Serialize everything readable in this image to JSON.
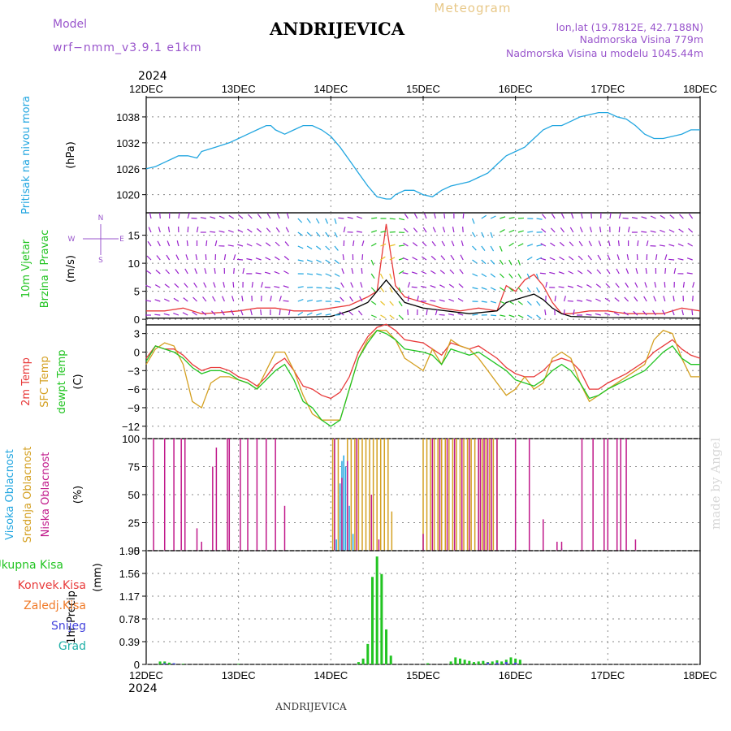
{
  "header": {
    "model_label": "Model",
    "model_value": "wrf−nmm_v3.9.1  e1km",
    "station": "ANDRIJEVICA",
    "product": "Meteogram",
    "coords": "lon,lat (19.7812E, 42.7188N)",
    "elevation": "Nadmorska Visina 779m",
    "model_elevation": "Nadmorska Visina u modelu 1045.44m",
    "year_top": "2024",
    "year_bottom": "2024",
    "footer_station": "ANDRIJEVICA",
    "credit": "made by Angel"
  },
  "colors": {
    "pressure": "#22a6e0",
    "rain_total": "#22c422",
    "convective": "#e83a3a",
    "frozen": "#f07a28",
    "snow": "#4444dd",
    "hail": "#22b0a8",
    "high_cloud": "#22a6e0",
    "mid_cloud": "#d4a022",
    "low_cloud": "#c0188a",
    "temp2m": "#e83a3a",
    "sfc_temp": "#d4a022",
    "dewpoint": "#22c422",
    "wind_label": "#22c422",
    "pressure_label": "#22a6e0",
    "model_label": "#9955cc"
  },
  "x_ticks": [
    "12DEC",
    "13DEC",
    "14DEC",
    "15DEC",
    "16DEC",
    "17DEC",
    "18DEC"
  ],
  "chart_data": [
    {
      "type": "line",
      "panel": "pressure",
      "ylabel_lines": [
        "Pritisak na nivou mora"
      ],
      "unit": "(hPa)",
      "ylim": [
        1015.8,
        1042.5
      ],
      "yticks": [
        1020,
        1026,
        1032,
        1038
      ],
      "series": [
        {
          "x": [
            0,
            0.1,
            0.2,
            0.3,
            0.35,
            0.45,
            0.55,
            0.6,
            0.75,
            0.9,
            1.0,
            1.1,
            1.2,
            1.3,
            1.35,
            1.4,
            1.5,
            1.6,
            1.7,
            1.8,
            1.9,
            2.0,
            2.1,
            2.2,
            2.3,
            2.4,
            2.5,
            2.6,
            2.65,
            2.7,
            2.8,
            2.9,
            3.0,
            3.1,
            3.2,
            3.3,
            3.4,
            3.5,
            3.6,
            3.7,
            3.8,
            3.9,
            4.0,
            4.1,
            4.2,
            4.3,
            4.4,
            4.5,
            4.6,
            4.7,
            4.8,
            4.9,
            5.0,
            5.1,
            5.2,
            5.3,
            5.4,
            5.5,
            5.6,
            5.7,
            5.8,
            5.9,
            6.0
          ],
          "y": [
            1026,
            1026.5,
            1027.5,
            1028.5,
            1029,
            1029,
            1028.5,
            1030,
            1031,
            1032,
            1033,
            1034,
            1035,
            1036,
            1036,
            1035,
            1034,
            1035,
            1036,
            1036,
            1035,
            1033.5,
            1031,
            1028,
            1025,
            1022,
            1019.5,
            1019,
            1019,
            1020,
            1021,
            1021,
            1020,
            1019.5,
            1021,
            1022,
            1022.5,
            1023,
            1024,
            1025,
            1027,
            1029,
            1030,
            1031,
            1033,
            1035,
            1036,
            1036,
            1037,
            1038,
            1038.5,
            1039,
            1039,
            1038,
            1037.5,
            1036,
            1034,
            1033,
            1033,
            1033.5,
            1034,
            1035,
            1035
          ]
        }
      ]
    },
    {
      "type": "line",
      "panel": "wind",
      "ylabel_lines": [
        "10m Vjetar",
        "Brzina i Pravac"
      ],
      "unit": "(m/s)",
      "compass": [
        "N",
        "E",
        "S",
        "W"
      ],
      "ylim": [
        -1,
        19
      ],
      "yticks": [
        0,
        5,
        10,
        15
      ],
      "series": [
        {
          "color": "#e83a3a",
          "x": [
            0,
            0.2,
            0.4,
            0.6,
            0.8,
            1.0,
            1.2,
            1.4,
            1.6,
            1.8,
            2.0,
            2.2,
            2.4,
            2.5,
            2.6,
            2.7,
            2.8,
            3.0,
            3.2,
            3.4,
            3.6,
            3.8,
            3.9,
            4.0,
            4.1,
            4.2,
            4.3,
            4.4,
            4.5,
            4.6,
            4.8,
            5.0,
            5.2,
            5.4,
            5.6,
            5.8,
            6.0
          ],
          "y": [
            1.5,
            1.5,
            2,
            1,
            1.2,
            1.5,
            2,
            2,
            1.5,
            1.5,
            2,
            2.5,
            4,
            5,
            17,
            6,
            4,
            3,
            2,
            1.5,
            2,
            1.5,
            6,
            5,
            7,
            8,
            6,
            3,
            1,
            1,
            1.5,
            1.5,
            1,
            1,
            1,
            2,
            1.5
          ]
        },
        {
          "color": "#000000",
          "x": [
            0,
            0.5,
            1.0,
            1.5,
            2.0,
            2.2,
            2.4,
            2.5,
            2.6,
            2.7,
            2.8,
            3.0,
            3.5,
            3.8,
            3.9,
            4.0,
            4.1,
            4.2,
            4.3,
            4.4,
            4.5,
            4.6,
            5.0,
            6.0
          ],
          "y": [
            0.2,
            0.2,
            0.3,
            0.3,
            0.5,
            1.5,
            3,
            5,
            7,
            5,
            3,
            2,
            1,
            1.5,
            3,
            3.5,
            4,
            4.5,
            3.5,
            2,
            1,
            0.5,
            0.3,
            0.2
          ]
        }
      ]
    },
    {
      "type": "line",
      "panel": "temperature",
      "ylabel_lines": [
        "2m Temp",
        "SFC Temp",
        "dewpt Temp"
      ],
      "unit": "(C)",
      "ylim": [
        -14,
        4.4
      ],
      "yticks": [
        -12,
        -9,
        -6,
        -3,
        0,
        3
      ],
      "series": [
        {
          "name": "2m Temp",
          "color": "#e83a3a",
          "x": [
            0,
            0.1,
            0.2,
            0.3,
            0.4,
            0.5,
            0.6,
            0.7,
            0.8,
            0.9,
            1.0,
            1.1,
            1.2,
            1.3,
            1.4,
            1.5,
            1.6,
            1.7,
            1.8,
            1.9,
            2.0,
            2.1,
            2.2,
            2.3,
            2.4,
            2.5,
            2.6,
            2.7,
            2.8,
            3.0,
            3.1,
            3.2,
            3.3,
            3.4,
            3.5,
            3.6,
            3.7,
            3.8,
            3.9,
            4.0,
            4.1,
            4.2,
            4.3,
            4.4,
            4.5,
            4.6,
            4.7,
            4.8,
            4.9,
            5.0,
            5.2,
            5.4,
            5.5,
            5.6,
            5.7,
            5.8,
            5.9,
            6.0
          ],
          "y": [
            -1,
            1,
            0.5,
            0.5,
            -0.5,
            -2,
            -3,
            -2.5,
            -2.5,
            -3,
            -4,
            -4.5,
            -5.5,
            -4,
            -2,
            -1,
            -3,
            -5.5,
            -6,
            -7,
            -7.5,
            -6.5,
            -4,
            0,
            2.5,
            4,
            4.5,
            3.5,
            2,
            1.5,
            0.5,
            -0.5,
            1.5,
            1,
            0.5,
            1,
            0,
            -1,
            -2.5,
            -3.5,
            -4,
            -4,
            -3,
            -1.5,
            -1,
            -1.5,
            -3,
            -6,
            -6,
            -5,
            -3.5,
            -1.5,
            0,
            1,
            2,
            0.5,
            -0.5,
            -1
          ]
        },
        {
          "name": "SFC Temp",
          "color": "#d4a022",
          "x": [
            0,
            0.1,
            0.2,
            0.3,
            0.4,
            0.5,
            0.6,
            0.7,
            0.8,
            0.9,
            1.0,
            1.1,
            1.2,
            1.3,
            1.4,
            1.5,
            1.6,
            1.7,
            1.8,
            1.9,
            2.0,
            2.1,
            2.2,
            2.3,
            2.4,
            2.5,
            2.6,
            2.7,
            2.8,
            3.0,
            3.1,
            3.2,
            3.3,
            3.4,
            3.5,
            3.6,
            3.7,
            3.8,
            3.9,
            4.0,
            4.1,
            4.2,
            4.3,
            4.4,
            4.5,
            4.6,
            4.7,
            4.8,
            4.9,
            5.0,
            5.2,
            5.4,
            5.5,
            5.6,
            5.7,
            5.8,
            5.9,
            6.0
          ],
          "y": [
            -2,
            0.5,
            1.5,
            1,
            -2,
            -8,
            -9,
            -5,
            -4,
            -4,
            -4.5,
            -5,
            -6,
            -3,
            0,
            0,
            -3,
            -7,
            -10,
            -11,
            -11,
            -11,
            -6,
            -1,
            2,
            3.5,
            3.5,
            2,
            -1,
            -3,
            0.5,
            -2,
            2,
            1,
            0.5,
            -1,
            -3,
            -5,
            -7,
            -6,
            -4,
            -6,
            -5,
            -1,
            0,
            -1,
            -5,
            -8,
            -7,
            -6,
            -4,
            -2,
            2,
            3.5,
            3,
            -1,
            -4,
            -4
          ]
        },
        {
          "name": "dewpt Temp",
          "color": "#22c422",
          "x": [
            0,
            0.1,
            0.2,
            0.3,
            0.4,
            0.5,
            0.6,
            0.7,
            0.8,
            0.9,
            1.0,
            1.1,
            1.2,
            1.3,
            1.4,
            1.5,
            1.6,
            1.7,
            1.8,
            1.9,
            2.0,
            2.1,
            2.2,
            2.3,
            2.4,
            2.5,
            2.6,
            2.7,
            2.8,
            3.0,
            3.1,
            3.2,
            3.3,
            3.4,
            3.5,
            3.6,
            3.7,
            3.8,
            3.9,
            4.0,
            4.1,
            4.2,
            4.3,
            4.4,
            4.5,
            4.6,
            4.7,
            4.8,
            4.9,
            5.0,
            5.2,
            5.4,
            5.5,
            5.6,
            5.7,
            5.8,
            5.9,
            6.0
          ],
          "y": [
            -1.5,
            1,
            0.5,
            0,
            -1,
            -2.5,
            -3.5,
            -3,
            -3,
            -3.5,
            -4.5,
            -5,
            -6,
            -4.5,
            -3,
            -2,
            -4.5,
            -8,
            -9,
            -11,
            -12,
            -11,
            -6,
            -1,
            1.5,
            3.5,
            3,
            2,
            0.5,
            0,
            -0.5,
            -2,
            0.5,
            0,
            -0.5,
            0,
            -1,
            -2,
            -3,
            -4.5,
            -5,
            -5.5,
            -4.5,
            -3,
            -2,
            -3,
            -5,
            -7.5,
            -7,
            -6,
            -4.5,
            -3,
            -1.5,
            0,
            1,
            -1,
            -2,
            -2
          ]
        }
      ]
    },
    {
      "type": "bar",
      "panel": "clouds",
      "ylabel_lines": [
        "Visoka Oblacnost",
        "Srednja Oblacnost",
        "Niska Oblacnost"
      ],
      "unit": "(%)",
      "ylim": [
        0,
        100
      ],
      "yticks": [
        0,
        25,
        50,
        75,
        100
      ],
      "series": [
        {
          "name": "Visoka Oblacnost",
          "color": "#22a6e0",
          "x": [
            2.06,
            2.1,
            2.12,
            2.14,
            2.16,
            2.2,
            2.24,
            3.0,
            3.5,
            4.0,
            4.5
          ],
          "values": [
            10,
            60,
            80,
            85,
            75,
            40,
            15,
            2,
            2,
            2,
            2
          ]
        },
        {
          "name": "Srednja Oblacnost",
          "color": "#d4a022",
          "x": [
            2.02,
            2.04,
            2.08,
            2.18,
            2.22,
            2.26,
            2.3,
            2.34,
            2.38,
            2.42,
            2.46,
            2.5,
            2.54,
            2.58,
            2.62,
            2.66,
            3.0,
            3.04,
            3.08,
            3.12,
            3.16,
            3.2,
            3.24,
            3.28,
            3.32,
            3.36,
            3.4,
            3.44,
            3.48,
            3.52,
            3.56,
            3.6,
            3.64,
            3.68,
            3.72,
            3.76,
            3.8
          ],
          "values": [
            100,
            100,
            100,
            100,
            100,
            100,
            100,
            100,
            100,
            100,
            100,
            100,
            100,
            100,
            100,
            35,
            100,
            100,
            100,
            100,
            100,
            100,
            100,
            100,
            100,
            100,
            100,
            100,
            100,
            100,
            100,
            100,
            100,
            100,
            100,
            100,
            100
          ]
        },
        {
          "name": "Niska Oblacnost",
          "color": "#c0188a",
          "x": [
            0.08,
            0.2,
            0.3,
            0.38,
            0.42,
            0.55,
            0.6,
            0.72,
            0.76,
            0.88,
            0.9,
            1.02,
            1.1,
            1.2,
            1.3,
            1.4,
            1.5,
            2.04,
            2.12,
            2.18,
            2.28,
            2.44,
            2.52,
            3.0,
            3.1,
            3.18,
            3.26,
            3.34,
            3.42,
            3.5,
            3.6,
            3.62,
            3.66,
            3.7,
            3.74,
            3.8,
            4.0,
            4.15,
            4.3,
            4.45,
            4.5,
            4.72,
            4.84,
            4.96,
            5.0,
            5.1,
            5.14,
            5.2,
            5.3
          ],
          "values": [
            100,
            100,
            100,
            100,
            100,
            20,
            8,
            75,
            92,
            100,
            100,
            100,
            100,
            100,
            100,
            100,
            40,
            100,
            65,
            80,
            100,
            50,
            10,
            15,
            100,
            100,
            100,
            100,
            100,
            100,
            100,
            100,
            100,
            100,
            100,
            100,
            100,
            100,
            28,
            8,
            8,
            100,
            100,
            100,
            100,
            100,
            100,
            100,
            10
          ]
        }
      ]
    },
    {
      "type": "bar",
      "panel": "precipitation",
      "ylabel_lines": [
        "1hr Precip"
      ],
      "unit": "(mm)",
      "legend": [
        "Ukupna Kisa",
        "Konvek.Kisa",
        "Zaledj.Kisa",
        "Snijeg",
        "Grad"
      ],
      "ylim": [
        0,
        1.95
      ],
      "yticks": [
        0,
        0.39,
        0.78,
        1.17,
        1.56,
        1.95
      ],
      "series": [
        {
          "name": "Ukupna Kisa",
          "color": "#22c422",
          "x": [
            0.15,
            0.2,
            0.25,
            0.3,
            0.4,
            1.0,
            2.3,
            2.35,
            2.4,
            2.45,
            2.5,
            2.55,
            2.6,
            2.65,
            3.05,
            3.3,
            3.35,
            3.4,
            3.45,
            3.5,
            3.55,
            3.6,
            3.65,
            3.7,
            3.75,
            3.8,
            3.85,
            3.9,
            3.95,
            4.0,
            4.05
          ],
          "values": [
            0.05,
            0.05,
            0.03,
            0.02,
            0.01,
            0.01,
            0.04,
            0.1,
            0.35,
            1.5,
            1.85,
            1.55,
            0.6,
            0.15,
            0.02,
            0.05,
            0.12,
            0.1,
            0.08,
            0.06,
            0.04,
            0.05,
            0.06,
            0.04,
            0.05,
            0.07,
            0.05,
            0.08,
            0.12,
            0.1,
            0.08
          ]
        },
        {
          "name": "Snijeg",
          "color": "#4444dd",
          "x": [
            0.2,
            0.3,
            3.7,
            3.8,
            3.9,
            4.0
          ],
          "values": [
            0.02,
            0.02,
            0.03,
            0.03,
            0.04,
            0.03
          ]
        }
      ]
    }
  ]
}
